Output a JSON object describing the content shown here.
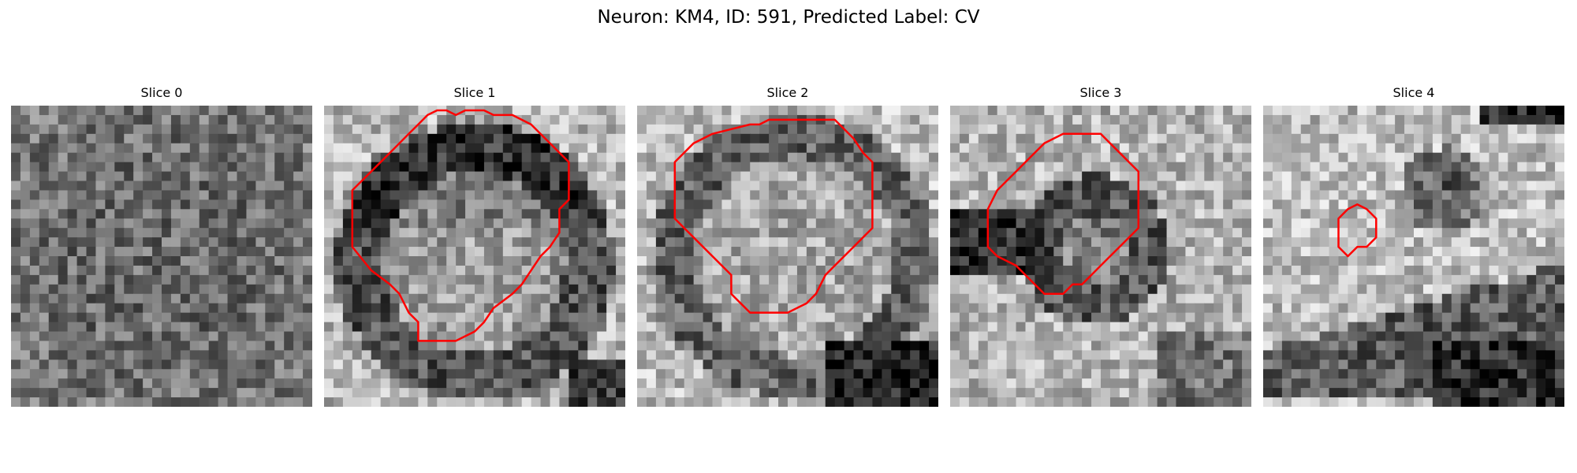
{
  "figure": {
    "title": "Neuron: KM4, ID: 591, Predicted Label: CV"
  },
  "panels": [
    {
      "title": "Slice 0",
      "has_contour": false
    },
    {
      "title": "Slice 1",
      "has_contour": true
    },
    {
      "title": "Slice 2",
      "has_contour": true
    },
    {
      "title": "Slice 3",
      "has_contour": true
    },
    {
      "title": "Slice 4",
      "has_contour": true
    }
  ],
  "colors": {
    "contour": "#ff0000",
    "colormap": "grayscale"
  }
}
